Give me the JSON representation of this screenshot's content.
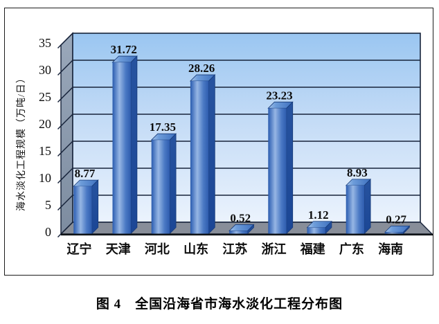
{
  "chart_data": {
    "type": "bar",
    "subtype": "3d-column",
    "title": "图 4　全国沿海省市海水淡化工程分布图",
    "ylabel": "海水淡化工程规模（万吨/日）",
    "categories": [
      "辽宁",
      "天津",
      "河北",
      "山东",
      "江苏",
      "浙江",
      "福建",
      "广东",
      "海南"
    ],
    "values": [
      8.77,
      31.72,
      17.35,
      28.26,
      0.52,
      23.23,
      1.12,
      8.93,
      0.27
    ],
    "value_label_decimals": 2,
    "ylim": [
      0,
      35
    ],
    "yticks": [
      0,
      5,
      10,
      15,
      20,
      25,
      30,
      35
    ],
    "grid": true,
    "legend_position": "none",
    "colors": {
      "wall_top": "#9ac6f1",
      "wall_mid": "#c3dbf6",
      "wall_bottom": "#ebf3fd",
      "side_wall_top": "#9aa8ba",
      "side_wall_bottom": "#7d8ca0",
      "floor": "#888e99",
      "grid_line": "#17233a",
      "axis_line": "#101418",
      "bar_front_edge": "#2a5aab",
      "bar_front_light": "#96b6e4",
      "bar_front_right": "#2e5cae",
      "bar_side_top": "#27539f",
      "bar_side_bottom": "#1b4695",
      "bar_top_light": "#a6c5ec",
      "bar_top_dark": "#3e70bf",
      "text": "#0d0d0d"
    }
  }
}
